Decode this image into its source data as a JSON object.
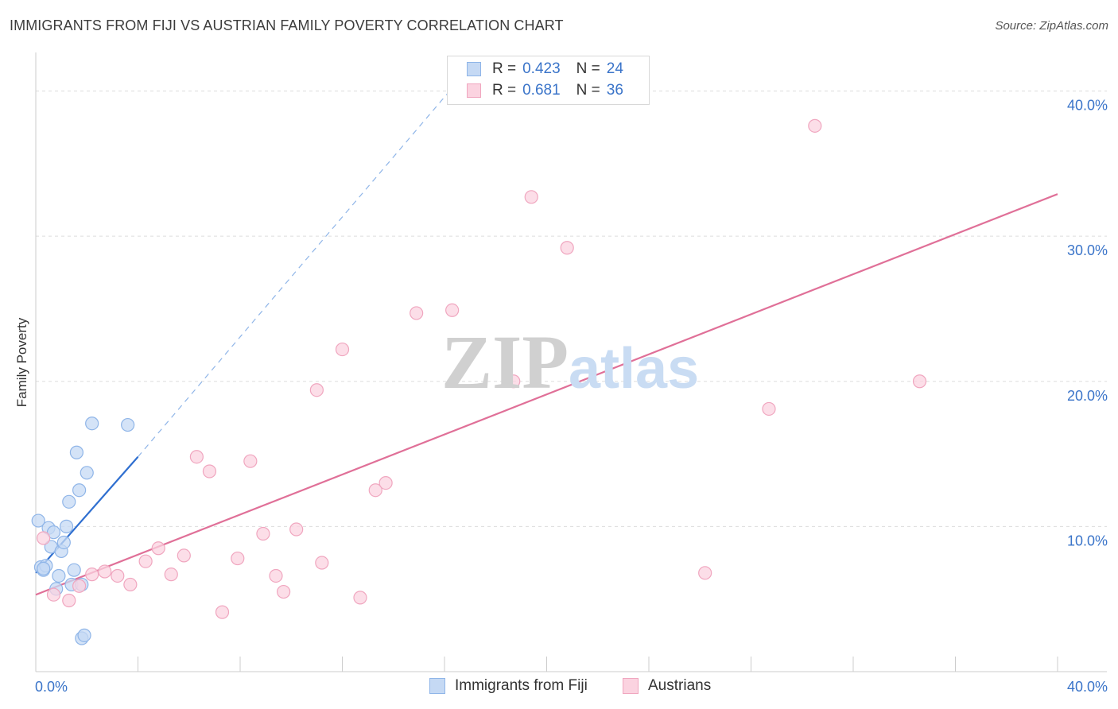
{
  "header": {
    "title": "IMMIGRANTS FROM FIJI VS AUSTRIAN FAMILY POVERTY CORRELATION CHART",
    "source": "Source: ZipAtlas.com"
  },
  "watermark": {
    "zip": "ZIP",
    "atlas": "atlas"
  },
  "colors": {
    "fiji": "#8fb5e8",
    "fiji_fill": "#c5d9f4",
    "fiji_line": "#2f6fd0",
    "austrians": "#f0a6bf",
    "austrians_fill": "#fbd3e0",
    "austrians_line": "#e07098",
    "axis_text": "#3a74c9",
    "grid": "#dddddd"
  },
  "legend_top": {
    "rows": [
      {
        "r_label": "R =",
        "r_value": "0.423",
        "n_label": "N =",
        "n_value": "24",
        "series": "fiji"
      },
      {
        "r_label": "R =",
        "r_value": "0.681",
        "n_label": "N =",
        "n_value": "36",
        "series": "austrians"
      }
    ]
  },
  "legend_bottom": {
    "items": [
      {
        "label": "Immigrants from Fiji",
        "series": "fiji"
      },
      {
        "label": "Austrians",
        "series": "austrians"
      }
    ]
  },
  "chart_data": {
    "type": "scatter",
    "title": "IMMIGRANTS FROM FIJI VS AUSTRIAN FAMILY POVERTY CORRELATION CHART",
    "xlabel": "",
    "ylabel": "Family Poverty",
    "xlim": [
      0,
      40
    ],
    "ylim": [
      0,
      42
    ],
    "x_tick_labels": [
      "0.0%",
      "40.0%"
    ],
    "y_ticks": [
      10,
      20,
      30,
      40
    ],
    "y_tick_labels": [
      "10.0%",
      "20.0%",
      "30.0%",
      "40.0%"
    ],
    "grid": true,
    "legend_placement": "bottom",
    "series": [
      {
        "name": "Immigrants from Fiji",
        "key": "fiji",
        "R": 0.423,
        "N": 24,
        "points": [
          [
            0.1,
            10.4
          ],
          [
            0.2,
            7.2
          ],
          [
            0.3,
            7.0
          ],
          [
            0.4,
            7.3
          ],
          [
            0.5,
            9.9
          ],
          [
            0.6,
            8.6
          ],
          [
            0.7,
            9.6
          ],
          [
            0.8,
            5.7
          ],
          [
            0.9,
            6.6
          ],
          [
            1.0,
            8.3
          ],
          [
            1.1,
            8.9
          ],
          [
            1.2,
            10.0
          ],
          [
            1.3,
            11.7
          ],
          [
            1.4,
            6.0
          ],
          [
            1.5,
            7.0
          ],
          [
            1.6,
            15.1
          ],
          [
            1.7,
            12.5
          ],
          [
            1.8,
            6.0
          ],
          [
            1.8,
            2.3
          ],
          [
            1.9,
            2.5
          ],
          [
            2.0,
            13.7
          ],
          [
            2.2,
            17.1
          ],
          [
            3.6,
            17.0
          ],
          [
            0.3,
            7.1
          ]
        ],
        "trend": {
          "x": [
            0.0,
            4.0
          ],
          "y": [
            6.8,
            14.8
          ]
        },
        "trend_extension": {
          "x": [
            4.0,
            16.2
          ],
          "y": [
            14.8,
            40.0
          ]
        }
      },
      {
        "name": "Austrians",
        "key": "austrians",
        "R": 0.681,
        "N": 36,
        "points": [
          [
            0.3,
            9.2
          ],
          [
            0.7,
            5.3
          ],
          [
            1.3,
            4.9
          ],
          [
            1.7,
            5.9
          ],
          [
            2.2,
            6.7
          ],
          [
            2.7,
            6.9
          ],
          [
            3.2,
            6.6
          ],
          [
            3.7,
            6.0
          ],
          [
            4.3,
            7.6
          ],
          [
            4.8,
            8.5
          ],
          [
            5.3,
            6.7
          ],
          [
            5.8,
            8.0
          ],
          [
            6.3,
            14.8
          ],
          [
            6.8,
            13.8
          ],
          [
            7.3,
            4.1
          ],
          [
            7.9,
            7.8
          ],
          [
            8.4,
            14.5
          ],
          [
            8.9,
            9.5
          ],
          [
            9.4,
            6.6
          ],
          [
            9.7,
            5.5
          ],
          [
            10.2,
            9.8
          ],
          [
            11.0,
            19.4
          ],
          [
            11.2,
            7.5
          ],
          [
            12.0,
            22.2
          ],
          [
            12.7,
            5.1
          ],
          [
            13.3,
            12.5
          ],
          [
            13.7,
            13.0
          ],
          [
            14.9,
            24.7
          ],
          [
            16.3,
            24.9
          ],
          [
            18.7,
            20.0
          ],
          [
            19.4,
            32.7
          ],
          [
            20.8,
            29.2
          ],
          [
            26.2,
            6.8
          ],
          [
            28.7,
            18.1
          ],
          [
            30.5,
            37.6
          ],
          [
            34.6,
            20.0
          ]
        ],
        "trend": {
          "x": [
            0.0,
            40.0
          ],
          "y": [
            5.3,
            32.9
          ]
        }
      }
    ]
  }
}
